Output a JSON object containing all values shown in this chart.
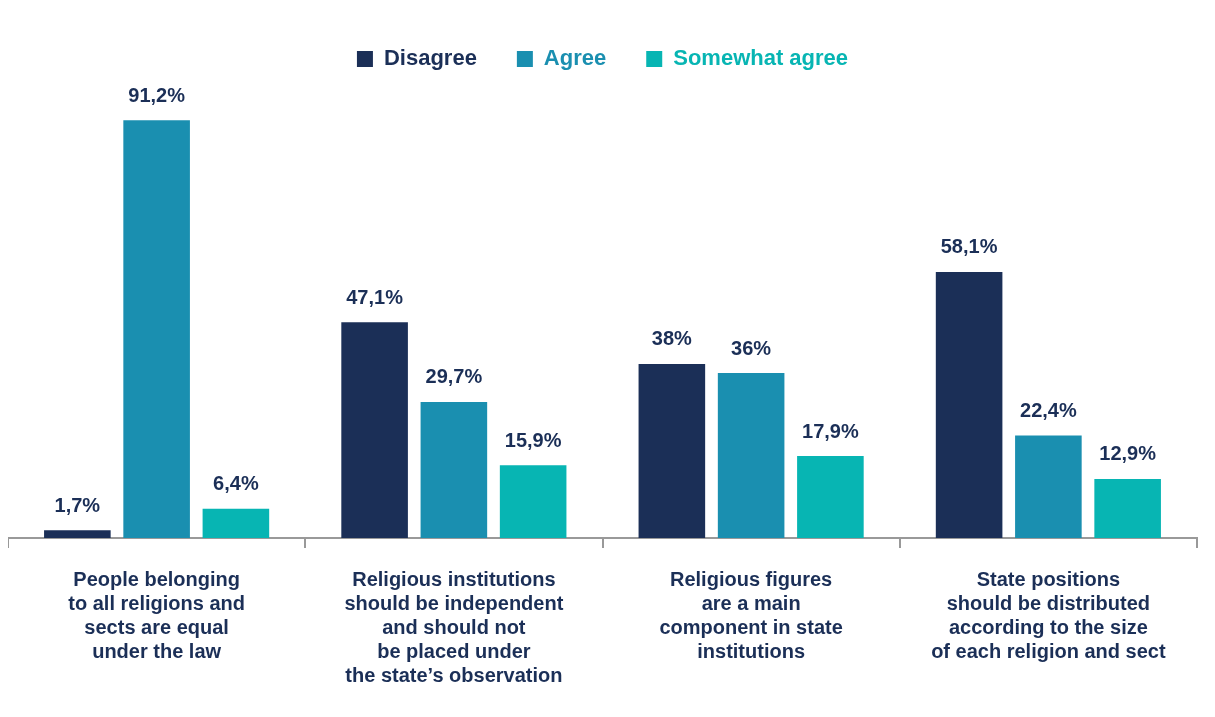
{
  "chart_data": {
    "type": "bar",
    "categories": [
      "People belonging\nto all religions and\nsects are equal\nunder the law",
      "Religious institutions\nshould be independent\nand should not\nbe placed under\nthe state’s observation",
      "Religious figures\nare a main\ncomponent in state\ninstitutions",
      "State positions\nshould be distributed\naccording to the size\nof each religion and sect"
    ],
    "series": [
      {
        "name": "Disagree",
        "color": "#1b2f57",
        "values": [
          1.7,
          47.1,
          38,
          58.1
        ],
        "value_labels": [
          "1,7%",
          "47,1%",
          "38%",
          "58,1%"
        ]
      },
      {
        "name": "Agree",
        "color": "#1a8fb0",
        "values": [
          91.2,
          29.7,
          36,
          22.4
        ],
        "value_labels": [
          "91,2%",
          "29,7%",
          "36%",
          "22,4%"
        ]
      },
      {
        "name": "Somewhat agree",
        "color": "#07b5b3",
        "values": [
          6.4,
          15.9,
          17.9,
          12.9
        ],
        "value_labels": [
          "6,4%",
          "15,9%",
          "17,9%",
          "12,9%"
        ]
      }
    ],
    "tick_labels": "x",
    "grid": false,
    "legend": "top"
  }
}
